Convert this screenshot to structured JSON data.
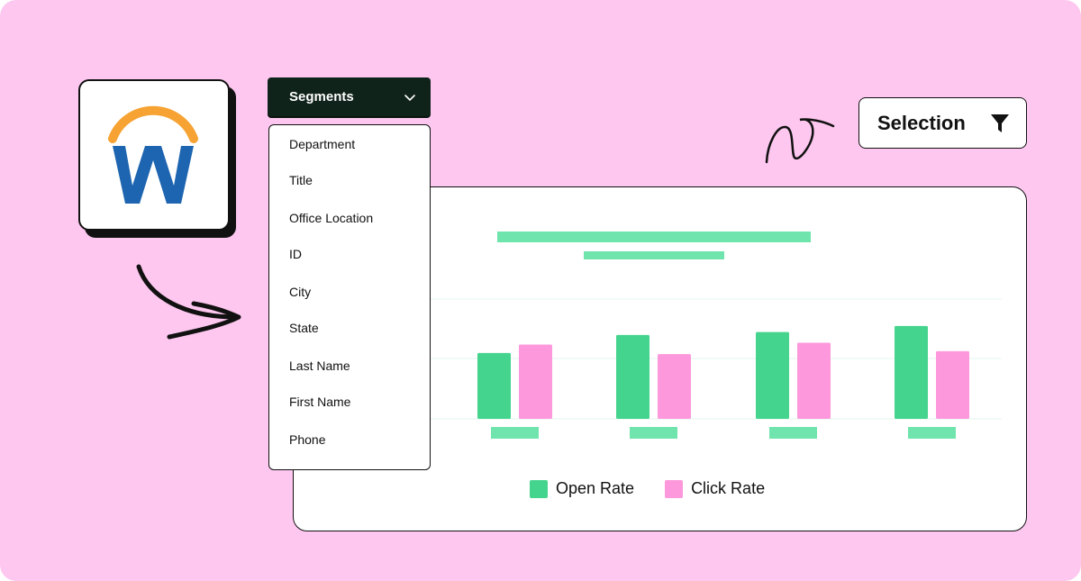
{
  "colors": {
    "background": "#fdc7ef",
    "open_rate": "#45d48e",
    "click_rate": "#fd98dc",
    "placeholder": "#6fe4ad",
    "dark": "#10231a",
    "workday_orange": "#f6a333",
    "workday_blue": "#1d65b0"
  },
  "logo": {
    "icon": "workday-logo-icon"
  },
  "segments": {
    "label": "Segments",
    "icon": "chevron-down-icon",
    "options": [
      "Department",
      "Title",
      "Office Location",
      "ID",
      "City",
      "State",
      "Last Name",
      "First Name",
      "Phone"
    ]
  },
  "selection": {
    "label": "Selection",
    "icon": "filter-funnel-icon"
  },
  "chart_data": {
    "type": "bar",
    "title": "",
    "categories": [
      "",
      "",
      "",
      ""
    ],
    "series": [
      {
        "name": "Open Rate",
        "values": [
          1.1,
          1.4,
          1.45,
          1.55
        ]
      },
      {
        "name": "Click Rate",
        "values": [
          1.24,
          1.08,
          1.27,
          1.13
        ]
      }
    ],
    "ylim": [
      0,
      2
    ],
    "grid": true,
    "legend": "bottom-center"
  },
  "legend": {
    "open_label": "Open Rate",
    "click_label": "Click Rate"
  }
}
